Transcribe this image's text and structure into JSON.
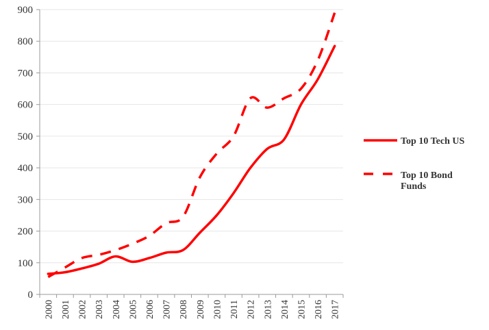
{
  "chart_data": {
    "type": "line",
    "title": "",
    "xlabel": "",
    "ylabel": "",
    "categories": [
      "2000",
      "2001",
      "2002",
      "2003",
      "2004",
      "2005",
      "2006",
      "2007",
      "2008",
      "2009",
      "2010",
      "2011",
      "2012",
      "2013",
      "2014",
      "2015",
      "2016",
      "2017"
    ],
    "ylim": [
      0,
      900
    ],
    "yticks": [
      0,
      100,
      200,
      300,
      400,
      500,
      600,
      700,
      800,
      900
    ],
    "grid": true,
    "legend_position": "right",
    "series": [
      {
        "name": "Top 10 Tech US",
        "style": "solid",
        "color": "#ff0000",
        "values": [
          65,
          70,
          82,
          97,
          120,
          103,
          115,
          132,
          140,
          195,
          250,
          320,
          400,
          460,
          490,
          600,
          680,
          785
        ]
      },
      {
        "name": "Top 10 Bond Funds",
        "style": "dashed",
        "color": "#ff0000",
        "values": [
          55,
          85,
          115,
          125,
          140,
          160,
          185,
          225,
          245,
          370,
          445,
          500,
          620,
          590,
          620,
          650,
          740,
          890
        ]
      }
    ]
  }
}
